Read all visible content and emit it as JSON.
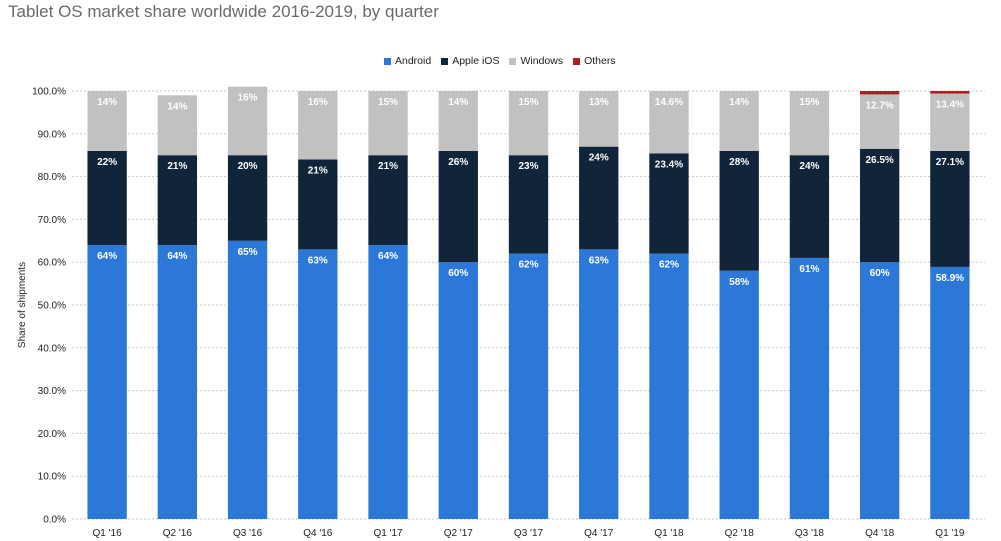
{
  "chart_data": {
    "type": "bar",
    "stacked": true,
    "title": "Tablet OS market share worldwide 2016-2019, by quarter",
    "ylabel": "Share of shipments",
    "ylim": [
      0,
      100
    ],
    "yticks": [
      "0.0%",
      "10.0%",
      "20.0%",
      "30.0%",
      "40.0%",
      "50.0%",
      "60.0%",
      "70.0%",
      "80.0%",
      "90.0%",
      "100.0%"
    ],
    "legend_position": "top",
    "grid": true,
    "categories": [
      "Q1 '16",
      "Q2 '16",
      "Q3 '16",
      "Q4 '16",
      "Q1 '17",
      "Q2 '17",
      "Q3 '17",
      "Q4 '17",
      "Q1 '18",
      "Q2 '18",
      "Q3 '18",
      "Q4 '18",
      "Q1 '19"
    ],
    "series": [
      {
        "name": "Android",
        "color": "#2b78d8",
        "values": [
          64,
          64,
          65,
          63,
          64,
          60,
          62,
          63,
          62,
          58,
          61,
          60,
          58.9
        ],
        "labels": [
          "64%",
          "64%",
          "65%",
          "63%",
          "64%",
          "60%",
          "62%",
          "63%",
          "62%",
          "58%",
          "61%",
          "60%",
          "58.9%"
        ]
      },
      {
        "name": "Apple iOS",
        "color": "#10243a",
        "values": [
          22,
          21,
          20,
          21,
          21,
          26,
          23,
          24,
          23.4,
          28,
          24,
          26.5,
          27.1
        ],
        "labels": [
          "22%",
          "21%",
          "20%",
          "21%",
          "21%",
          "26%",
          "23%",
          "24%",
          "23.4%",
          "28%",
          "24%",
          "26.5%",
          "27.1%"
        ]
      },
      {
        "name": "Windows",
        "color": "#c1c1c1",
        "values": [
          14,
          14,
          16,
          16,
          15,
          14,
          15,
          13,
          14.6,
          14,
          15,
          12.7,
          13.4
        ],
        "labels": [
          "14%",
          "14%",
          "16%",
          "16%",
          "15%",
          "14%",
          "15%",
          "13%",
          "14.6%",
          "14%",
          "15%",
          "12.7%",
          "13.4%"
        ]
      },
      {
        "name": "Others",
        "color": "#b01e24",
        "values": [
          0,
          0,
          0,
          0,
          0,
          0,
          0,
          0,
          0,
          0,
          0,
          0.8,
          0.6
        ],
        "labels": [
          "",
          "",
          "",
          "",
          "",
          "",
          "",
          "",
          "",
          "",
          "",
          "",
          ""
        ]
      }
    ]
  }
}
